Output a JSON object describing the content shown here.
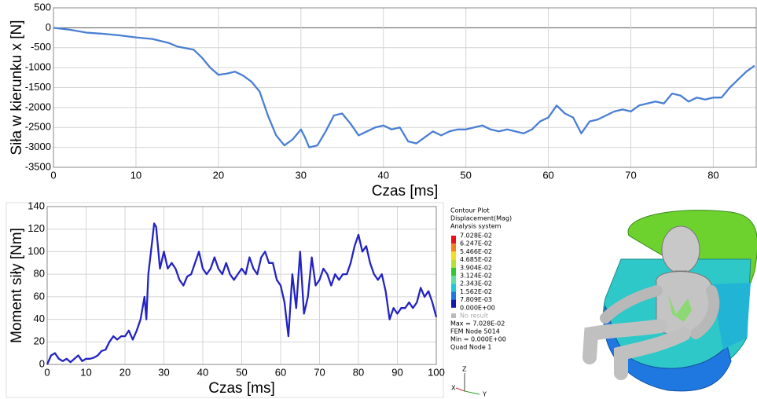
{
  "chart_data": [
    {
      "type": "line",
      "ylabel": "Siła w kierunku x [N]",
      "xlabel": "Czas [ms]",
      "color": "#4a7fd4",
      "grid": true,
      "xlim": [
        0,
        85.2
      ],
      "ylim": [
        -3500,
        500
      ],
      "xticks": [
        0,
        10,
        20,
        30,
        40,
        50,
        60,
        70,
        80
      ],
      "yticks": [
        500,
        0,
        -500,
        -1000,
        -1500,
        -2000,
        -2500,
        -3000,
        -3500
      ],
      "x": [
        0,
        2,
        4,
        6,
        8,
        10,
        12,
        14,
        15,
        17,
        18,
        19,
        20,
        21,
        22,
        23,
        24,
        25,
        26,
        27,
        28,
        29,
        30,
        30.5,
        31,
        32,
        33,
        34,
        35,
        36,
        37,
        38,
        39,
        40,
        41,
        42,
        43,
        44,
        45,
        46,
        47,
        48,
        49,
        50,
        51,
        52,
        53,
        54,
        55,
        56,
        57,
        58,
        59,
        60,
        61,
        62,
        63,
        64,
        65,
        66,
        67,
        68,
        69,
        70,
        71,
        72,
        73,
        74,
        75,
        76,
        77,
        78,
        79,
        80,
        81,
        82,
        83,
        84,
        85
      ],
      "values": [
        0,
        -50,
        -120,
        -150,
        -190,
        -240,
        -280,
        -380,
        -470,
        -550,
        -750,
        -1000,
        -1180,
        -1150,
        -1100,
        -1200,
        -1350,
        -1600,
        -2200,
        -2700,
        -2950,
        -2800,
        -2550,
        -2750,
        -3000,
        -2950,
        -2600,
        -2200,
        -2150,
        -2400,
        -2700,
        -2600,
        -2500,
        -2450,
        -2550,
        -2500,
        -2850,
        -2900,
        -2750,
        -2600,
        -2700,
        -2600,
        -2550,
        -2550,
        -2500,
        -2450,
        -2550,
        -2600,
        -2550,
        -2600,
        -2650,
        -2550,
        -2350,
        -2250,
        -1950,
        -2150,
        -2250,
        -2650,
        -2350,
        -2300,
        -2200,
        -2100,
        -2050,
        -2100,
        -1950,
        -1900,
        -1850,
        -1900,
        -1650,
        -1700,
        -1850,
        -1750,
        -1800,
        -1750,
        -1750,
        -1500,
        -1300,
        -1100,
        -950
      ]
    },
    {
      "type": "line",
      "ylabel": "Moment siły [Nm]",
      "xlabel": "Czas [ms]",
      "color": "#2323c2",
      "grid": true,
      "xlim": [
        0,
        100
      ],
      "ylim": [
        0,
        140
      ],
      "xticks": [
        0,
        10,
        20,
        30,
        40,
        50,
        60,
        70,
        80,
        90,
        100
      ],
      "yticks": [
        0,
        20,
        40,
        60,
        80,
        100,
        120,
        140
      ],
      "x": [
        0,
        1,
        2,
        3,
        4,
        5,
        6,
        7,
        8,
        9,
        10,
        11,
        12,
        13,
        14,
        15,
        16,
        17,
        18,
        19,
        20,
        21,
        22,
        23,
        24,
        25,
        25.5,
        26,
        27,
        27.5,
        28,
        29,
        30,
        31,
        32,
        33,
        34,
        35,
        36,
        37,
        38,
        39,
        40,
        41,
        42,
        43,
        44,
        45,
        46,
        47,
        48,
        49,
        50,
        51,
        52,
        53,
        54,
        55,
        56,
        57,
        58,
        59,
        60,
        61,
        62,
        63,
        64,
        65,
        66,
        67,
        68,
        69,
        70,
        71,
        72,
        73,
        74,
        75,
        76,
        77,
        78,
        79,
        80,
        81,
        82,
        83,
        84,
        85,
        86,
        87,
        88,
        89,
        90,
        91,
        92,
        93,
        94,
        95,
        96,
        97,
        98,
        99,
        100
      ],
      "values": [
        0,
        8,
        10,
        5,
        3,
        5,
        2,
        5,
        8,
        3,
        5,
        5,
        6,
        8,
        12,
        13,
        20,
        25,
        22,
        25,
        25,
        30,
        22,
        30,
        40,
        60,
        40,
        80,
        110,
        125,
        122,
        85,
        100,
        85,
        90,
        85,
        75,
        70,
        78,
        80,
        90,
        100,
        85,
        80,
        85,
        95,
        85,
        80,
        90,
        80,
        75,
        80,
        85,
        80,
        95,
        85,
        80,
        95,
        100,
        90,
        90,
        75,
        70,
        55,
        25,
        80,
        50,
        100,
        45,
        60,
        95,
        70,
        75,
        85,
        80,
        70,
        80,
        75,
        80,
        80,
        90,
        105,
        115,
        100,
        105,
        90,
        80,
        75,
        80,
        65,
        40,
        50,
        45,
        50,
        50,
        55,
        50,
        55,
        68,
        60,
        65,
        55,
        42
      ]
    }
  ],
  "contour_legend": {
    "title": "Contour Plot",
    "quantity": "Displacement(Mag)",
    "system": "Analysis system",
    "levels": [
      "7.028E-02",
      "6.247E-02",
      "5.466E-02",
      "4.685E-02",
      "3.904E-02",
      "3.124E-02",
      "2.343E-02",
      "1.562E-02",
      "7.809E-03",
      "0.000E+00"
    ],
    "colors": [
      "#e8101a",
      "#f5801a",
      "#f0e020",
      "#b8e030",
      "#30c830",
      "#60e0a0",
      "#20c8d8",
      "#1e78e0",
      "#1418b0"
    ],
    "no_result": "No result",
    "info": [
      "Max = 7.028E-02",
      "FEM Node 5014",
      "Min = 0.000E+00",
      "Quad Node 1"
    ],
    "axes": [
      "Z",
      "X",
      "Y"
    ]
  }
}
